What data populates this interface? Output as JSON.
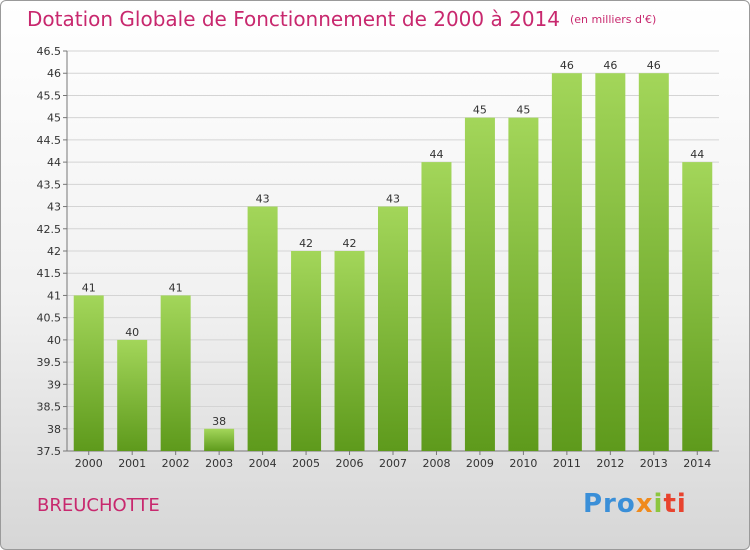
{
  "header": {
    "title": "Dotation Globale de Fonctionnement de 2000 à 2014",
    "unit": "(en milliers d'€)"
  },
  "footer": {
    "commune": "BREUCHOTTE",
    "logo_parts": [
      "Pro",
      "x",
      "i",
      "ti"
    ]
  },
  "colors": {
    "accent": "#c8286e",
    "bar_light": "#a3d65a",
    "bar_dark": "#5e9a1c"
  },
  "chart_data": {
    "type": "bar",
    "categories": [
      "2000",
      "2001",
      "2002",
      "2003",
      "2004",
      "2005",
      "2006",
      "2007",
      "2008",
      "2009",
      "2010",
      "2011",
      "2012",
      "2013",
      "2014"
    ],
    "values": [
      41,
      40,
      41,
      38,
      43,
      42,
      42,
      43,
      44,
      45,
      45,
      46,
      46,
      46,
      44
    ],
    "ylim": [
      37.5,
      46.5
    ],
    "yticks": [
      "37.5",
      "38",
      "38.5",
      "39",
      "39.5",
      "40",
      "40.5",
      "41",
      "41.5",
      "42",
      "42.5",
      "43",
      "43.5",
      "44",
      "44.5",
      "45",
      "45.5",
      "46",
      "46.5"
    ],
    "grid": true,
    "title": "Dotation Globale de Fonctionnement de 2000 à 2014",
    "xlabel": "",
    "ylabel": ""
  }
}
